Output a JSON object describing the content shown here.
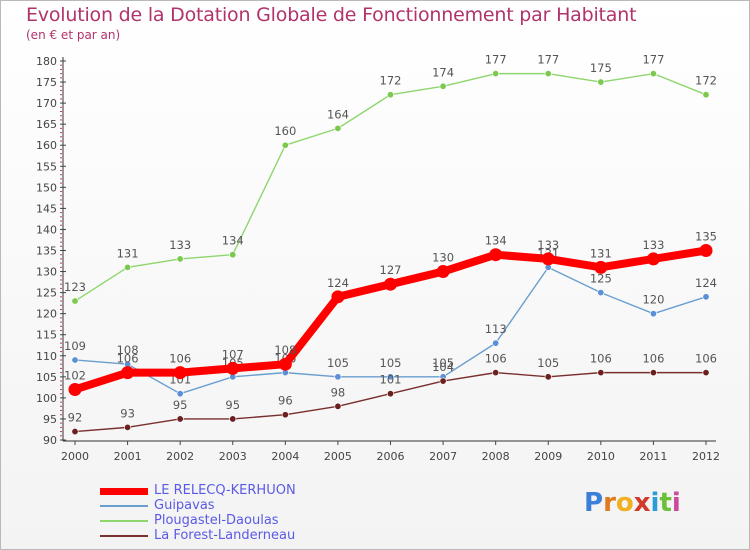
{
  "title": "Evolution de la Dotation Globale de Fonctionnement par Habitant",
  "subtitle": "(en € et par an)",
  "logo": "Proxiti",
  "colors": {
    "title": "#b1336b",
    "legend_text": "#5a5ae6",
    "axis": "#333333",
    "grid_tick": "#c43a6a"
  },
  "chart_data": {
    "type": "line",
    "title": "Evolution de la Dotation Globale de Fonctionnement par Habitant",
    "subtitle": "(en € et par an)",
    "xlabel": "",
    "ylabel": "",
    "x": [
      "2000",
      "2001",
      "2002",
      "2003",
      "2004",
      "2005",
      "2006",
      "2007",
      "2008",
      "2009",
      "2010",
      "2011",
      "2012"
    ],
    "ylim": [
      90,
      180
    ],
    "yticks": [
      90,
      95,
      100,
      105,
      110,
      115,
      120,
      125,
      130,
      135,
      140,
      145,
      150,
      155,
      160,
      165,
      170,
      175,
      180
    ],
    "legend_position": "bottom-left",
    "series": [
      {
        "name": "LE RELECQ-KERHUON",
        "color": "#ff0000",
        "marker": "#ff0000",
        "values": [
          102,
          106,
          106,
          107,
          108,
          124,
          127,
          130,
          134,
          133,
          131,
          133,
          135
        ]
      },
      {
        "name": "Guipavas",
        "color": "#6a9ecf",
        "marker": "#5b8fd6",
        "values": [
          109,
          108,
          101,
          105,
          106,
          105,
          105,
          105,
          113,
          131,
          125,
          120,
          124
        ]
      },
      {
        "name": "Plougastel-Daoulas",
        "color": "#8ed66e",
        "marker": "#7cc94f",
        "values": [
          123,
          131,
          133,
          134,
          160,
          164,
          172,
          174,
          177,
          177,
          175,
          177,
          172
        ]
      },
      {
        "name": "La Forest-Landerneau",
        "color": "#7a2f2f",
        "marker": "#6b1f1f",
        "values": [
          92,
          93,
          95,
          95,
          96,
          98,
          101,
          104,
          106,
          105,
          106,
          106,
          106
        ]
      }
    ]
  }
}
